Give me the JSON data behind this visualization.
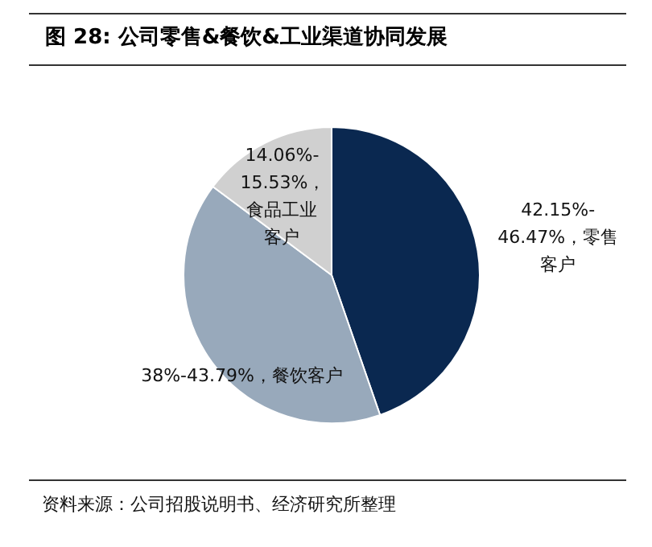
{
  "chart_data": {
    "type": "pie",
    "title": "图 28: 公司零售&餐饮&工业渠道协同发展",
    "categories": [
      "42.15%-46.47%，零售客户",
      "38%-43.79%，餐饮客户",
      "14.06%-15.53%，食品工业客户"
    ],
    "values": [
      44.7,
      40.5,
      14.8
    ],
    "colors": [
      "#0a2850",
      "#98a9bb",
      "#d0d0d0"
    ],
    "annotations": [
      "资料来源：公司招股说明书、经济研究所整理"
    ]
  }
}
